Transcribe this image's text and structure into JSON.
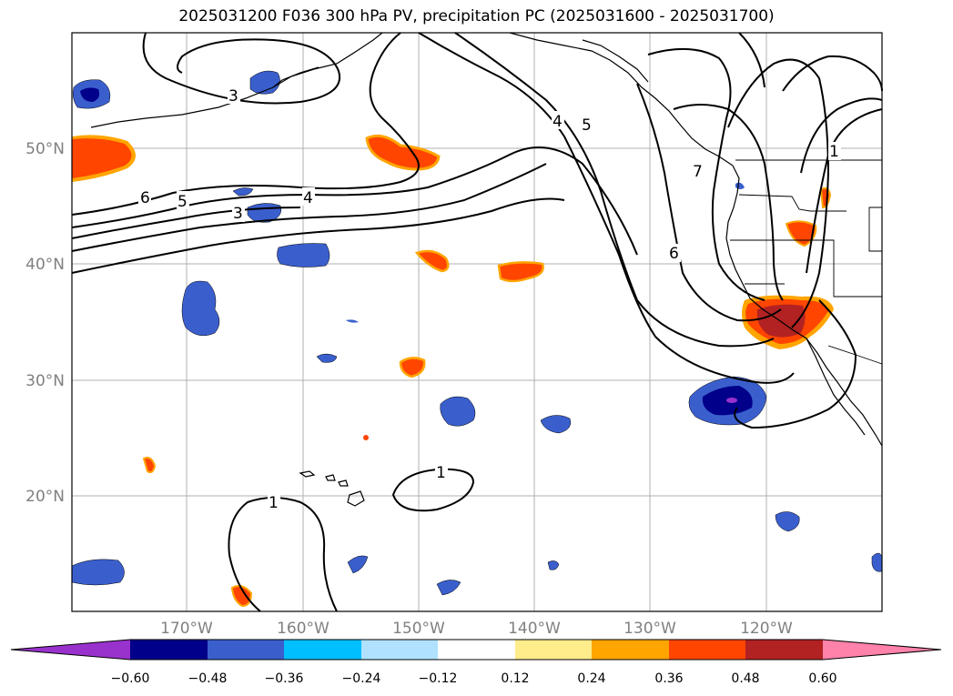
{
  "title": "2025031200 F036 300 hPa PV, precipitation PC (2025031600 - 2025031700)",
  "lat_labels": [
    "50°N",
    "40°N",
    "30°N",
    "20°N"
  ],
  "lon_labels": [
    "170°W",
    "160°W",
    "150°W",
    "140°W",
    "130°W",
    "120°W"
  ],
  "contour_labels": [
    "3",
    "6",
    "5",
    "3",
    "4",
    "4",
    "5",
    "7",
    "6",
    "1",
    "1",
    "1"
  ],
  "colorbar": {
    "tick_labels": [
      "−0.60",
      "−0.48",
      "−0.36",
      "−0.24",
      "−0.12",
      "0.12",
      "0.24",
      "0.36",
      "0.48",
      "0.60"
    ],
    "colors": [
      "#9932cc",
      "#00008b",
      "#3a5fcd",
      "#00bfff",
      "#b0e2ff",
      "#ffffff",
      "#ffec8b",
      "#ffa500",
      "#ff4500",
      "#b22222",
      "#ff82ab"
    ]
  }
}
